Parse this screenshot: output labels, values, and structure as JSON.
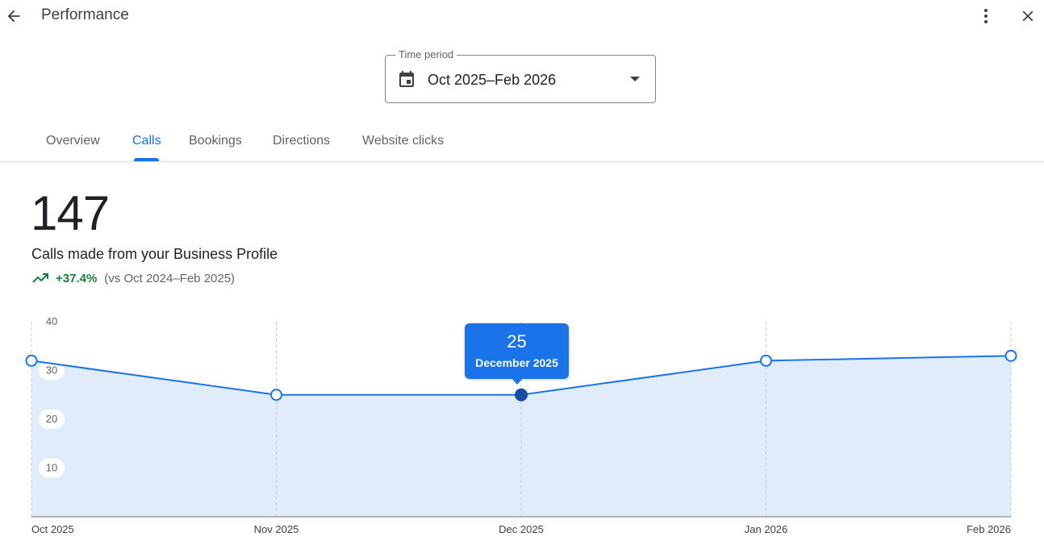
{
  "header": {
    "title": "Performance",
    "back_icon": "arrow-back-icon",
    "more_icon": "more-vert-icon",
    "close_icon": "close-icon"
  },
  "time_period": {
    "label": "Time period",
    "value": "Oct 2025–Feb 2026",
    "icon": "calendar-icon"
  },
  "tabs": [
    {
      "label": "Overview",
      "active": false
    },
    {
      "label": "Calls",
      "active": true
    },
    {
      "label": "Bookings",
      "active": false
    },
    {
      "label": "Directions",
      "active": false
    },
    {
      "label": "Website clicks",
      "active": false
    }
  ],
  "metric": {
    "value": "147",
    "label": "Calls made from your Business Profile",
    "change": "+37.4%",
    "comparison": "(vs Oct 2024–Feb 2025)"
  },
  "colors": {
    "accent": "#1a73e8",
    "positive": "#188038",
    "area_fill": "#e1ecfb",
    "selected_point": "#174ea6"
  },
  "tooltip": {
    "value": "25",
    "label": "December 2025"
  },
  "chart_data": {
    "type": "area",
    "categories": [
      "Oct 2025",
      "Nov 2025",
      "Dec 2025",
      "Jan 2026",
      "Feb 2026"
    ],
    "values": [
      32,
      25,
      25,
      32,
      33
    ],
    "y_ticks": [
      10,
      20,
      30,
      40
    ],
    "ylim": [
      0,
      40
    ],
    "grid": "vertical dashed",
    "selected_index": 2
  }
}
